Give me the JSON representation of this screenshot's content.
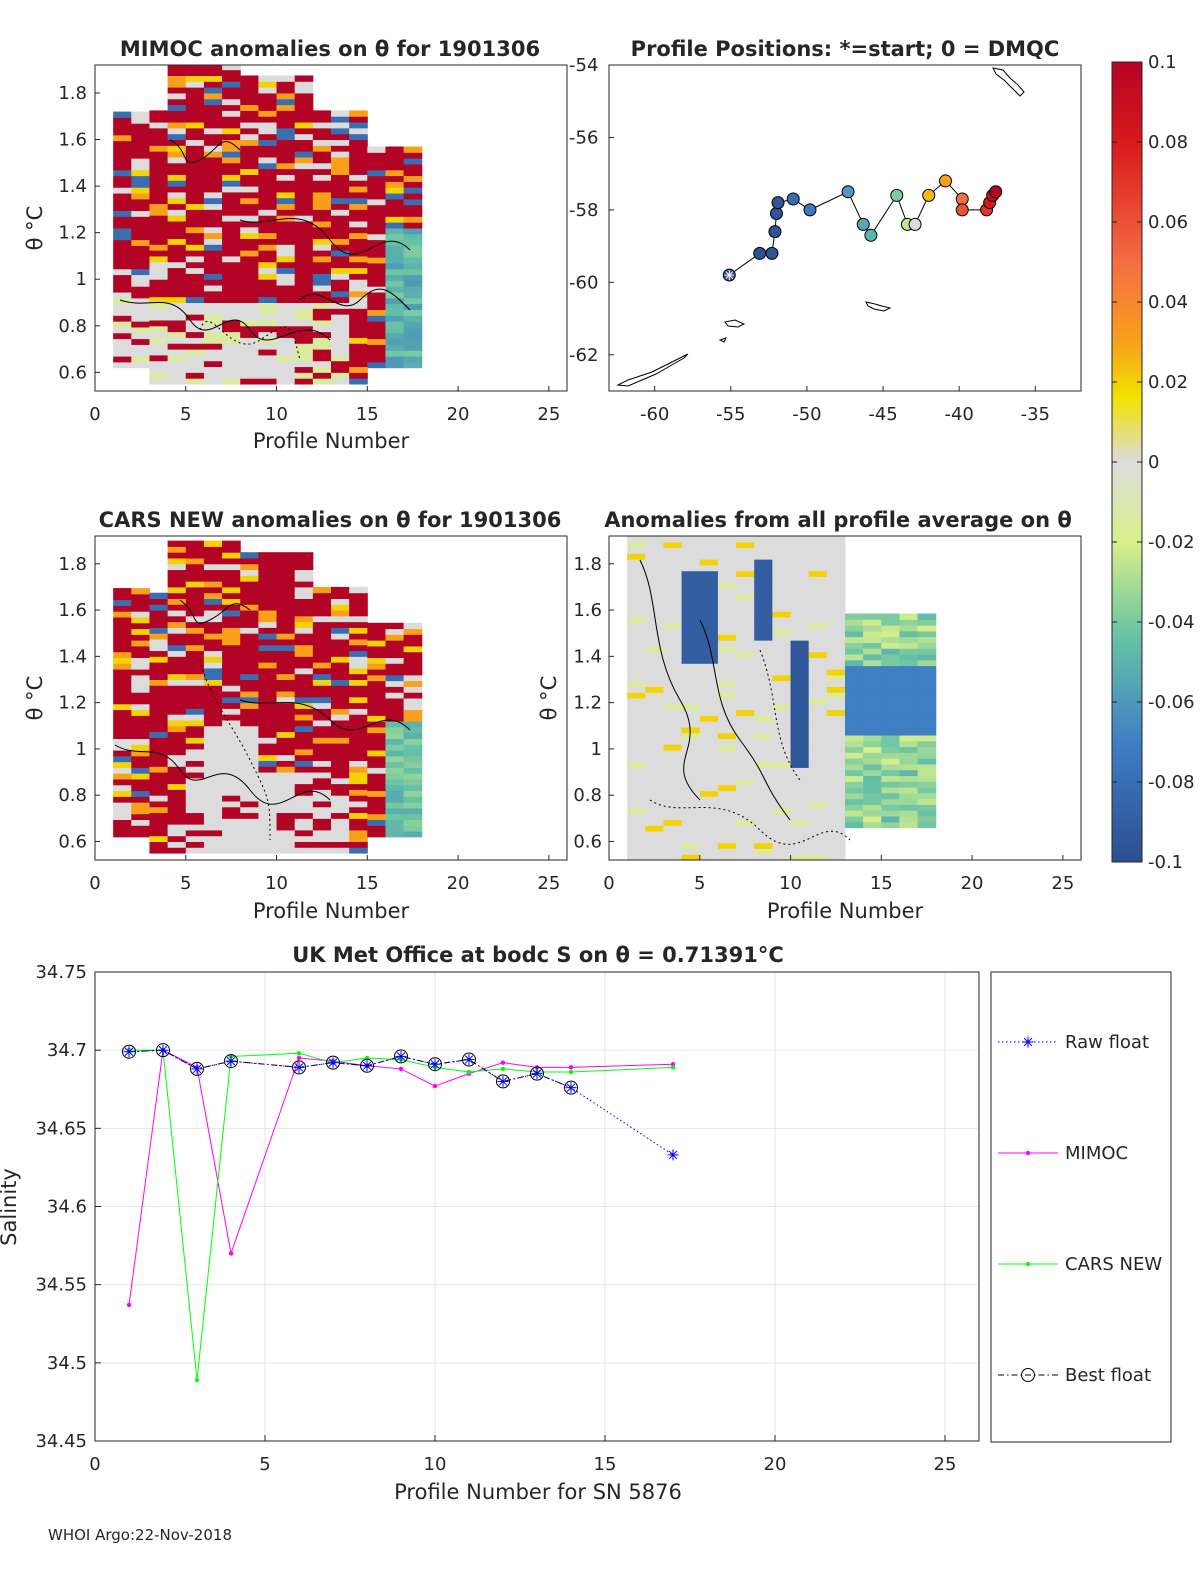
{
  "chart_data": [
    {
      "id": "mimoc-anomaly",
      "type": "heatmap",
      "title": "MIMOC anomalies on θ  for 1901306",
      "xlabel": "Profile Number",
      "ylabel": "θ °C",
      "xlim": [
        0,
        26
      ],
      "ylim": [
        0.52,
        1.92
      ],
      "xticks": [
        "0",
        "5",
        "10",
        "15",
        "20",
        "25"
      ],
      "yticks": [
        "0.6",
        "0.8",
        "1",
        "1.2",
        "1.4",
        "1.6",
        "1.8"
      ],
      "profile_top": [
        1.7,
        1.7,
        1.7,
        1.92,
        1.92,
        1.92,
        1.92,
        1.86,
        1.86,
        1.86,
        1.86,
        1.72,
        1.72,
        1.72,
        1.56,
        1.56,
        1.56
      ],
      "profile_bottom": [
        0.62,
        0.62,
        0.55,
        0.55,
        0.55,
        0.55,
        0.55,
        0.55,
        0.55,
        0.55,
        0.55,
        0.55,
        0.55,
        0.55,
        0.62,
        0.62,
        0.62
      ]
    },
    {
      "id": "positions",
      "type": "scatter",
      "title": "Profile Positions: *=start; 0 = DMQC",
      "xlim": [
        -63,
        -32
      ],
      "ylim": [
        -63,
        -54
      ],
      "xticks": [
        "-60",
        "-55",
        "-50",
        "-45",
        "-40",
        "-35"
      ],
      "yticks": [
        "-54",
        "-56",
        "-58",
        "-60",
        "-62"
      ],
      "lon": [
        -55.1,
        -53.1,
        -52.3,
        -52.1,
        -52.0,
        -51.9,
        -50.9,
        -49.8,
        -47.3,
        -46.3,
        -45.8,
        -44.1,
        -43.4,
        -42.9,
        -42.0,
        -40.9,
        -39.8,
        -39.8,
        -38.2,
        -38.0,
        -37.8,
        -37.6
      ],
      "lat": [
        -59.8,
        -59.2,
        -59.2,
        -58.6,
        -58.1,
        -57.8,
        -57.7,
        -58.0,
        -57.5,
        -58.4,
        -58.7,
        -57.6,
        -58.4,
        -58.4,
        -57.6,
        -57.2,
        -57.7,
        -58.0,
        -58.0,
        -57.8,
        -57.6,
        -57.5
      ],
      "color_value": [
        -0.1,
        -0.098,
        -0.097,
        -0.096,
        -0.096,
        -0.095,
        -0.08,
        -0.073,
        -0.06,
        -0.055,
        -0.05,
        -0.04,
        -0.025,
        0.0,
        0.025,
        0.03,
        0.05,
        0.06,
        0.07,
        0.08,
        0.09,
        0.1
      ]
    },
    {
      "id": "colorbar",
      "type": "heatmap",
      "range": [
        -0.1,
        0.1
      ],
      "ticks": [
        "0.1",
        "0.08",
        "0.06",
        "0.04",
        "0.02",
        "0",
        "-0.02",
        "-0.04",
        "-0.06",
        "-0.08",
        "-0.1"
      ]
    },
    {
      "id": "cars-anomaly",
      "type": "heatmap",
      "title": "CARS NEW anomalies on θ for 1901306",
      "xlabel": "Profile Number",
      "ylabel": "θ °C",
      "xlim": [
        0,
        26
      ],
      "ylim": [
        0.52,
        1.92
      ],
      "xticks": [
        "0",
        "5",
        "10",
        "15",
        "20",
        "25"
      ],
      "yticks": [
        "0.6",
        "0.8",
        "1",
        "1.2",
        "1.4",
        "1.6",
        "1.8"
      ]
    },
    {
      "id": "profile-average-anomaly",
      "type": "heatmap",
      "title": "Anomalies from all profile average on θ",
      "xlabel": "Profile Number",
      "ylabel": "θ °C",
      "xlim": [
        0,
        26
      ],
      "ylim": [
        0.52,
        1.92
      ],
      "xticks": [
        "0",
        "5",
        "10",
        "15",
        "20",
        "25"
      ],
      "yticks": [
        "0.6",
        "0.8",
        "1",
        "1.2",
        "1.4",
        "1.6",
        "1.8"
      ]
    },
    {
      "id": "salinity",
      "type": "line",
      "title": "UK Met Office at bodc S on θ = 0.71391°C",
      "xlabel": "Profile Number for SN 5876",
      "ylabel": "Salinity",
      "xlim": [
        0,
        26
      ],
      "ylim": [
        34.45,
        34.75
      ],
      "xticks": [
        "0",
        "5",
        "10",
        "15",
        "20",
        "25"
      ],
      "yticks": [
        "34.45",
        "34.5",
        "34.55",
        "34.6",
        "34.65",
        "34.7",
        "34.75"
      ],
      "series": [
        {
          "name": "Raw float",
          "color": "#0000ff",
          "x": [
            1,
            2,
            3,
            4,
            6,
            7,
            8,
            9,
            10,
            11,
            12,
            13,
            14,
            17
          ],
          "y": [
            34.699,
            34.7,
            34.688,
            34.693,
            34.689,
            34.692,
            34.69,
            34.696,
            34.691,
            34.694,
            34.68,
            34.685,
            34.676,
            34.633
          ]
        },
        {
          "name": "MIMOC",
          "color": "#ff00ff",
          "x": [
            1,
            2,
            3,
            4,
            6,
            7,
            8,
            9,
            10,
            11,
            12,
            13,
            14,
            17
          ],
          "y": [
            34.537,
            34.7,
            34.689,
            34.57,
            34.695,
            34.693,
            34.69,
            34.688,
            34.677,
            34.685,
            34.692,
            34.689,
            34.689,
            34.691
          ]
        },
        {
          "name": "CARS NEW",
          "color": "#00ff00",
          "x": [
            1,
            2,
            3,
            4,
            6,
            7,
            8,
            9,
            10,
            11,
            12,
            13,
            14,
            17
          ],
          "y": [
            34.7,
            34.7,
            34.489,
            34.696,
            34.698,
            34.692,
            34.695,
            34.694,
            34.689,
            34.686,
            34.688,
            34.686,
            34.686,
            34.689
          ]
        },
        {
          "name": "Best float",
          "color": "#000000",
          "x": [
            1,
            2,
            3,
            4,
            6,
            7,
            8,
            9,
            10,
            11,
            12,
            13,
            14
          ],
          "y": [
            34.699,
            34.7,
            34.688,
            34.693,
            34.689,
            34.692,
            34.69,
            34.696,
            34.691,
            34.694,
            34.68,
            34.685,
            34.676
          ]
        }
      ]
    }
  ],
  "footer": "WHOI Argo:22-Nov-2018"
}
